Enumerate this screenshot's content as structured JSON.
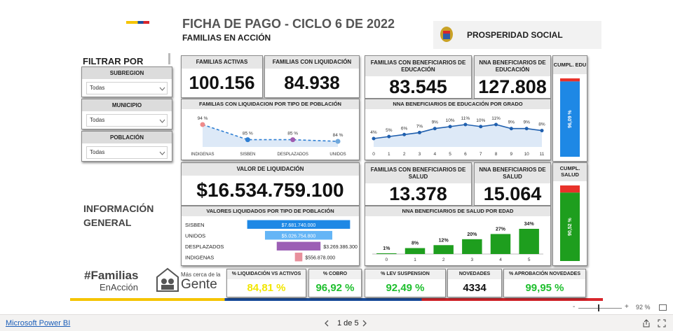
{
  "header": {
    "title": "FICHA DE PAGO - CICLO 6 DE 2022",
    "subtitle": "FAMILIAS EN ACCIÓN",
    "brand": "PROSPERIDAD SOCIAL"
  },
  "filters": {
    "heading": "FILTRAR POR",
    "items": [
      {
        "label": "SUBREGION",
        "value": "Todas"
      },
      {
        "label": "MUNICIPIO",
        "value": "Todas"
      },
      {
        "label": "POBLACIÓN",
        "value": "Todas"
      }
    ]
  },
  "section": "INFORMACIÓN GENERAL",
  "kpis": [
    {
      "label": "FAMILIAS ACTIVAS",
      "value": "100.156",
      "color": "#111111"
    },
    {
      "label": "FAMILIAS CON LIQUIDACIÓN",
      "value": "84.938",
      "color": "#111111"
    },
    {
      "label": "VALOR DE LIQUIDACIÓN",
      "value": "$16.534.759.100",
      "color": "#111111"
    },
    {
      "label": "FAMILIAS CON BENEFICIARIOS DE EDUCACIÓN",
      "value": "83.545",
      "color": "#111111"
    },
    {
      "label": "NNA BENEFICIARIOS DE EDUCACIÓN",
      "value": "127.808",
      "color": "#111111"
    },
    {
      "label": "FAMILIAS CON BENEFICIARIOS DE SALUD",
      "value": "13.378",
      "color": "#111111"
    },
    {
      "label": "NNA BENEFICIARIOS DE SALUD",
      "value": "15.064",
      "color": "#111111"
    },
    {
      "label": "% LIQUIDACIÓN VS ACTIVOS",
      "value": "84,81 %",
      "color": "#f2e600"
    },
    {
      "label": "% COBRO",
      "value": "96,92 %",
      "color": "#1fbf2e"
    },
    {
      "label": "% LEV SUSPENSION",
      "value": "92,49 %",
      "color": "#1fbf2e"
    },
    {
      "label": "NOVEDADES",
      "value": "4334",
      "color": "#111111"
    },
    {
      "label": "% APROBACIÓN NOVEDADES",
      "value": "99,95 %",
      "color": "#1fbf2e"
    }
  ],
  "logos": {
    "familias": [
      "#Familias",
      "EnAcción"
    ],
    "gente": [
      "Más cerca de la",
      "Gente"
    ]
  },
  "chart_data": [
    {
      "type": "line",
      "title": "FAMILIAS CON LIQUIDACION POR TIPO DE POBLACIÓN",
      "categories": [
        "INDIGENAS",
        "SISBEN",
        "DESPLAZADOS",
        "UNIDOS"
      ],
      "values": [
        94,
        85,
        85,
        84
      ],
      "value_labels": [
        "94 %",
        "85 %",
        "85 %",
        "84 %"
      ],
      "color": "#2f7fd3",
      "marker_colors": [
        "#ef8a8a",
        "#2f7fd3",
        "#a05cb0",
        "#6fa8dc"
      ],
      "dashed": true
    },
    {
      "type": "hbar",
      "title": "VALORES LIQUIDADOS POR TIPO DE POBLACIÓN",
      "categories": [
        "SISBEN",
        "UNIDOS",
        "DESPLAZADOS",
        "INDIGENAS"
      ],
      "values": [
        7681740000,
        5026754800,
        3269386300,
        556878000
      ],
      "value_labels": [
        "$7.681.740.000",
        "$5.026.754.800",
        "$3.269.386.300",
        "$556.878.000"
      ],
      "colors": [
        "#1e88e5",
        "#64b5f6",
        "#9c5fb5",
        "#e8909c"
      ]
    },
    {
      "type": "line",
      "title": "NNA BENEFICIARIOS DE EDUCACIÓN POR GRADO",
      "categories": [
        "0",
        "1",
        "2",
        "3",
        "4",
        "5",
        "6",
        "7",
        "8",
        "9",
        "10",
        "11"
      ],
      "values": [
        4,
        5,
        6,
        7,
        9,
        10,
        11,
        10,
        11,
        9,
        9,
        8
      ],
      "value_labels": [
        "4%",
        "5%",
        "6%",
        "7%",
        "9%",
        "10%",
        "11%",
        "10%",
        "11%",
        "9%",
        "9%",
        "8%"
      ],
      "color": "#1f5fae",
      "dashed": false
    },
    {
      "type": "bar",
      "title": "NNA BENEFICIARIOS DE SALUD POR EDAD",
      "categories": [
        "0",
        "1",
        "2",
        "3",
        "4",
        "5"
      ],
      "values": [
        1,
        8,
        12,
        20,
        27,
        34
      ],
      "value_labels": [
        "1%",
        "8%",
        "12%",
        "20%",
        "27%",
        "34%"
      ],
      "color": "#1e9e1e"
    },
    {
      "type": "progress",
      "title": "CUMPL. EDU",
      "value": 96.09,
      "value_label": "96,09 %",
      "ylim": [
        0,
        100
      ],
      "color": "#1e88e5",
      "rest_color": "#e8322a"
    },
    {
      "type": "progress",
      "title": "CUMPL. SALUD",
      "value": 90.52,
      "value_label": "90,52 %",
      "ylim": [
        0,
        100
      ],
      "color": "#1e9e1e",
      "rest_color": "#e8322a"
    }
  ],
  "footer": {
    "app": "Microsoft Power BI",
    "page": "1 de 5",
    "zoom": "92 %"
  }
}
